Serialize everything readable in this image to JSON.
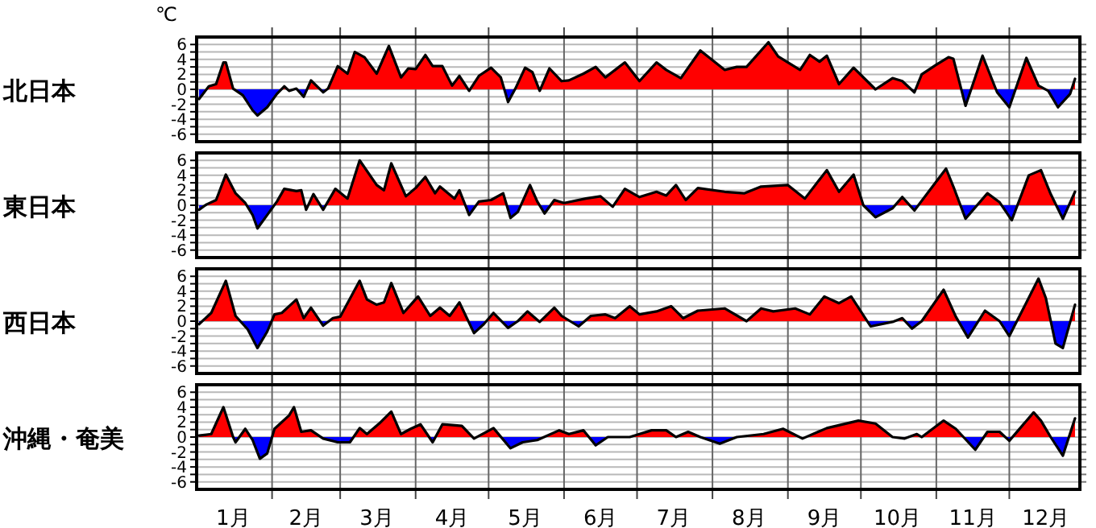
{
  "chart_data": [
    {
      "type": "area",
      "ylabel": "北日本",
      "annotations": [
        "℃"
      ],
      "xlim": [
        "--01-01",
        "--12-30"
      ],
      "ylim": [
        -7,
        7
      ],
      "tick_labels": "y",
      "grid": true,
      "colors": [
        "#ff0000",
        "#0000ff"
      ],
      "xticks": [
        {
          "value": "--02-01",
          "label": null
        },
        {
          "value": "--03-01",
          "label": null
        },
        {
          "value": "--04-01",
          "label": null
        },
        {
          "value": "--05-01",
          "label": null
        },
        {
          "value": "--06-01",
          "label": null
        },
        {
          "value": "--07-01",
          "label": null
        },
        {
          "value": "--08-01",
          "label": null
        },
        {
          "value": "--09-01",
          "label": null
        },
        {
          "value": "--10-01",
          "label": null
        },
        {
          "value": "--11-01",
          "label": null
        },
        {
          "value": "--12-01",
          "label": null
        }
      ],
      "yticks": [
        -6,
        {
          "value": -5,
          "label": null
        },
        -4,
        {
          "value": -3,
          "label": null
        },
        -2,
        {
          "value": -1,
          "label": null
        },
        0,
        {
          "value": 1,
          "label": null
        },
        2,
        {
          "value": 3,
          "label": null
        },
        4,
        {
          "value": 5,
          "label": null
        },
        6
      ],
      "series": [
        {
          "color": "#000000",
          "x": [
            "--01-02",
            "--01-06",
            "--01-09",
            "--01-12",
            "--01-13",
            "--01-16",
            "--01-20",
            "--01-24",
            "--01-26",
            "--01-30",
            "--02-03",
            "--02-06",
            "--02-08",
            "--02-11",
            "--02-14",
            "--02-17",
            "--02-22",
            "--02-24",
            "--02-28",
            "--03-04",
            "--03-07",
            "--03-11",
            "--03-16",
            "--03-21",
            "--03-26",
            "--03-29",
            "--04-01",
            "--04-05",
            "--04-08",
            "--04-12",
            "--04-16",
            "--04-19",
            "--04-23",
            "--04-27",
            "--05-02",
            "--05-06",
            "--05-09",
            "--05-12",
            "--05-16",
            "--05-19",
            "--05-22",
            "--05-26",
            "--05-31",
            "--06-03",
            "--06-09",
            "--06-14",
            "--06-18",
            "--06-26",
            "--07-02",
            "--07-09",
            "--07-13",
            "--07-19",
            "--07-27",
            "--08-06",
            "--08-11",
            "--08-15",
            "--08-24",
            "--08-28",
            "--09-06",
            "--09-10",
            "--09-14",
            "--09-17",
            "--09-22",
            "--09-28",
            "--10-07",
            "--10-14",
            "--10-18",
            "--10-23",
            "--10-26",
            "--11-01",
            "--11-06",
            "--11-08",
            "--11-13",
            "--11-20",
            "--11-26",
            "--12-01",
            "--12-08",
            "--12-13",
            "--12-17",
            "--12-21",
            "--12-26",
            "--12-28"
          ],
          "values": [
            -1.3,
            0.4,
            0.7,
            3.6,
            3.6,
            0.1,
            -0.8,
            -2.8,
            -3.5,
            -2.4,
            -0.6,
            0.4,
            -0.2,
            0.1,
            -1,
            1.2,
            -0.4,
            0.1,
            3.1,
            2.1,
            5,
            4.3,
            2.1,
            5.8,
            1.6,
            2.8,
            2.7,
            4.6,
            3.1,
            3.1,
            0.5,
            1.8,
            -0.2,
            1.8,
            2.9,
            1.6,
            -1.7,
            0.1,
            2.9,
            2.3,
            -0.2,
            2.8,
            1.1,
            1.2,
            2.1,
            3,
            1.6,
            3.6,
            1.1,
            3.6,
            2.6,
            1.5,
            5.2,
            2.6,
            3,
            3,
            6.3,
            4.4,
            2.6,
            4.6,
            3.7,
            4.5,
            0.7,
            2.9,
            0,
            1.5,
            1.1,
            -0.4,
            2,
            3.3,
            4.3,
            4.1,
            -2.2,
            4.5,
            -0.4,
            -2.4,
            4.2,
            0.5,
            -0.2,
            -2.4,
            -0.6,
            1.4
          ]
        }
      ]
    },
    {
      "type": "area",
      "ylabel": "東日本",
      "xlim": [
        "--01-01",
        "--12-30"
      ],
      "ylim": [
        -7,
        7
      ],
      "tick_labels": "y",
      "grid": true,
      "colors": [
        "#ff0000",
        "#0000ff"
      ],
      "xticks": [
        {
          "value": "--02-01",
          "label": null
        },
        {
          "value": "--03-01",
          "label": null
        },
        {
          "value": "--04-01",
          "label": null
        },
        {
          "value": "--05-01",
          "label": null
        },
        {
          "value": "--06-01",
          "label": null
        },
        {
          "value": "--07-01",
          "label": null
        },
        {
          "value": "--08-01",
          "label": null
        },
        {
          "value": "--09-01",
          "label": null
        },
        {
          "value": "--10-01",
          "label": null
        },
        {
          "value": "--11-01",
          "label": null
        },
        {
          "value": "--12-01",
          "label": null
        }
      ],
      "yticks": [
        -6,
        {
          "value": -5,
          "label": null
        },
        -4,
        {
          "value": -3,
          "label": null
        },
        -2,
        {
          "value": -1,
          "label": null
        },
        0,
        {
          "value": 1,
          "label": null
        },
        2,
        {
          "value": 3,
          "label": null
        },
        4,
        {
          "value": 5,
          "label": null
        },
        6
      ],
      "series": [
        {
          "color": "#000000",
          "x": [
            "--01-02",
            "--01-05",
            "--01-09",
            "--01-13",
            "--01-17",
            "--01-21",
            "--01-24",
            "--01-26",
            "--01-30",
            "--02-03",
            "--02-06",
            "--02-11",
            "--02-13",
            "--02-15",
            "--02-18",
            "--02-22",
            "--02-27",
            "--03-04",
            "--03-09",
            "--03-16",
            "--03-19",
            "--03-22",
            "--03-28",
            "--04-01",
            "--04-05",
            "--04-09",
            "--04-11",
            "--04-17",
            "--04-19",
            "--04-23",
            "--04-27",
            "--05-02",
            "--05-07",
            "--05-10",
            "--05-13",
            "--05-18",
            "--05-21",
            "--05-24",
            "--05-28",
            "--06-01",
            "--06-10",
            "--06-16",
            "--06-21",
            "--06-26",
            "--07-02",
            "--07-09",
            "--07-13",
            "--07-17",
            "--07-21",
            "--07-26",
            "--08-06",
            "--08-14",
            "--08-21",
            "--09-01",
            "--09-08",
            "--09-17",
            "--09-22",
            "--09-28",
            "--10-02",
            "--10-07",
            "--10-14",
            "--10-18",
            "--10-23",
            "--11-05",
            "--11-08",
            "--11-13",
            "--11-22",
            "--11-27",
            "--12-02",
            "--12-09",
            "--12-14",
            "--12-18",
            "--12-23",
            "--12-28"
          ],
          "values": [
            -0.6,
            0.1,
            0.7,
            4.1,
            1.6,
            0.3,
            -1.3,
            -3.1,
            -1.3,
            0.5,
            2.2,
            1.9,
            2,
            -0.6,
            1.5,
            -0.6,
            2.2,
            0.9,
            6,
            2.7,
            2,
            5.6,
            1.2,
            2.3,
            3.8,
            1.6,
            2.5,
            0.9,
            2,
            -1.3,
            0.5,
            0.7,
            1.6,
            -1.7,
            -0.9,
            2.7,
            0.5,
            -1.1,
            0.7,
            0.3,
            0.9,
            1.2,
            -0.2,
            2.2,
            1.1,
            1.8,
            1.3,
            2.7,
            0.7,
            2.3,
            1.8,
            1.6,
            2.5,
            2.7,
            0.9,
            4.7,
            1.8,
            4.1,
            0,
            -1.6,
            -0.4,
            1.1,
            -0.7,
            4.9,
            2.5,
            -1.8,
            1.6,
            0.4,
            -2,
            4,
            4.7,
            1.5,
            -1.8,
            1.8
          ]
        }
      ]
    },
    {
      "type": "area",
      "ylabel": "西日本",
      "xlim": [
        "--01-01",
        "--12-30"
      ],
      "ylim": [
        -7,
        7
      ],
      "tick_labels": "y",
      "grid": true,
      "colors": [
        "#ff0000",
        "#0000ff"
      ],
      "xticks": [
        {
          "value": "--02-01",
          "label": null
        },
        {
          "value": "--03-01",
          "label": null
        },
        {
          "value": "--04-01",
          "label": null
        },
        {
          "value": "--05-01",
          "label": null
        },
        {
          "value": "--06-01",
          "label": null
        },
        {
          "value": "--07-01",
          "label": null
        },
        {
          "value": "--08-01",
          "label": null
        },
        {
          "value": "--09-01",
          "label": null
        },
        {
          "value": "--10-01",
          "label": null
        },
        {
          "value": "--11-01",
          "label": null
        },
        {
          "value": "--12-01",
          "label": null
        }
      ],
      "yticks": [
        -6,
        {
          "value": -5,
          "label": null
        },
        -4,
        {
          "value": -3,
          "label": null
        },
        -2,
        {
          "value": -1,
          "label": null
        },
        0,
        {
          "value": 1,
          "label": null
        },
        2,
        {
          "value": 3,
          "label": null
        },
        4,
        {
          "value": 5,
          "label": null
        },
        6
      ],
      "series": [
        {
          "color": "#000000",
          "x": [
            "--01-02",
            "--01-07",
            "--01-13",
            "--01-17",
            "--01-22",
            "--01-26",
            "--01-30",
            "--02-02",
            "--02-05",
            "--02-11",
            "--02-14",
            "--02-17",
            "--02-22",
            "--02-26",
            "--03-01",
            "--03-09",
            "--03-12",
            "--03-16",
            "--03-19",
            "--03-22",
            "--03-27",
            "--04-02",
            "--04-07",
            "--04-11",
            "--04-15",
            "--04-19",
            "--04-25",
            "--04-29",
            "--05-03",
            "--05-09",
            "--05-13",
            "--05-17",
            "--05-22",
            "--05-28",
            "--05-31",
            "--06-07",
            "--06-12",
            "--06-18",
            "--06-22",
            "--06-28",
            "--07-02",
            "--07-09",
            "--07-15",
            "--07-20",
            "--07-26",
            "--08-06",
            "--08-15",
            "--08-21",
            "--08-26",
            "--09-04",
            "--09-10",
            "--09-16",
            "--09-22",
            "--09-27",
            "--10-05",
            "--10-14",
            "--10-18",
            "--10-22",
            "--10-26",
            "--11-04",
            "--11-09",
            "--11-14",
            "--11-21",
            "--11-27",
            "--12-01",
            "--12-13",
            "--12-16",
            "--12-20",
            "--12-23",
            "--12-28"
          ],
          "values": [
            -0.4,
            1.1,
            5.4,
            0.7,
            -1.1,
            -3.6,
            -1.4,
            0.9,
            1.1,
            2.9,
            0.4,
            1.8,
            -0.6,
            0.4,
            0.6,
            5.4,
            2.9,
            2.2,
            2.5,
            5.1,
            1.1,
            3.3,
            0.7,
            1.8,
            0.7,
            2.5,
            -1.6,
            -0.4,
            1.1,
            -0.9,
            0,
            1.3,
            -0.1,
            1.8,
            0.7,
            -0.7,
            0.7,
            0.9,
            0.4,
            2,
            0.9,
            1.3,
            2,
            0.4,
            1.4,
            1.7,
            0,
            1.7,
            1.3,
            1.7,
            0.9,
            3.3,
            2.4,
            3.3,
            -0.7,
            -0.1,
            0.4,
            -1,
            0,
            4.2,
            0.6,
            -2.2,
            1.4,
            0,
            -2,
            5.7,
            3.1,
            -3,
            -3.6,
            2.2
          ]
        }
      ]
    },
    {
      "type": "area",
      "ylabel": "沖縄・奄美",
      "xlim": [
        "--01-01",
        "--12-30"
      ],
      "ylim": [
        -7,
        7
      ],
      "grid": true,
      "colors": [
        "#ff0000",
        "#0000ff"
      ],
      "xticks": [
        {
          "value": "--01-16",
          "label": "1月"
        },
        {
          "value": "--02-01",
          "label": null
        },
        {
          "value": "--02-15",
          "label": "2月"
        },
        {
          "value": "--03-01",
          "label": null
        },
        {
          "value": "--03-16",
          "label": "3月"
        },
        {
          "value": "--04-01",
          "label": null
        },
        {
          "value": "--04-16",
          "label": "4月"
        },
        {
          "value": "--05-01",
          "label": null
        },
        {
          "value": "--05-16",
          "label": "5月"
        },
        {
          "value": "--06-01",
          "label": null
        },
        {
          "value": "--06-16",
          "label": "6月"
        },
        {
          "value": "--07-01",
          "label": null
        },
        {
          "value": "--07-16",
          "label": "7月"
        },
        {
          "value": "--08-01",
          "label": null
        },
        {
          "value": "--08-16",
          "label": "8月"
        },
        {
          "value": "--09-01",
          "label": null
        },
        {
          "value": "--09-16",
          "label": "9月"
        },
        {
          "value": "--10-01",
          "label": null
        },
        {
          "value": "--10-16",
          "label": "10月"
        },
        {
          "value": "--11-01",
          "label": null
        },
        {
          "value": "--11-16",
          "label": "11月"
        },
        {
          "value": "--12-01",
          "label": null
        },
        {
          "value": "--12-16",
          "label": "12月"
        }
      ],
      "yticks": [
        -6,
        {
          "value": -5,
          "label": null
        },
        -4,
        {
          "value": -3,
          "label": null
        },
        -2,
        {
          "value": -1,
          "label": null
        },
        0,
        {
          "value": 1,
          "label": null
        },
        2,
        {
          "value": 3,
          "label": null
        },
        4,
        {
          "value": 5,
          "label": null
        },
        6
      ],
      "series": [
        {
          "color": "#000000",
          "x": [
            "--01-02",
            "--01-07",
            "--01-12",
            "--01-16",
            "--01-17",
            "--01-21",
            "--01-24",
            "--01-27",
            "--01-30",
            "--02-02",
            "--02-08",
            "--02-10",
            "--02-13",
            "--02-17",
            "--02-22",
            "--02-28",
            "--03-05",
            "--03-09",
            "--03-12",
            "--03-17",
            "--03-22",
            "--03-26",
            "--03-30",
            "--04-03",
            "--04-08",
            "--04-12",
            "--04-20",
            "--04-25",
            "--05-03",
            "--05-10",
            "--05-15",
            "--05-21",
            "--05-30",
            "--06-03",
            "--06-09",
            "--06-14",
            "--06-19",
            "--06-28",
            "--07-02",
            "--07-07",
            "--07-13",
            "--07-17",
            "--07-22",
            "--07-27",
            "--08-04",
            "--08-11",
            "--08-22",
            "--08-30",
            "--09-07",
            "--09-17",
            "--09-30",
            "--10-07",
            "--10-14",
            "--10-19",
            "--10-24",
            "--10-26",
            "--11-04",
            "--11-09",
            "--11-17",
            "--11-22",
            "--11-27",
            "--12-01",
            "--12-11",
            "--12-14",
            "--12-18",
            "--12-23",
            "--12-28"
          ],
          "values": [
            0.2,
            0.4,
            4,
            0,
            -0.7,
            1.1,
            -0.4,
            -2.9,
            -2.2,
            1.1,
            2.9,
            4,
            0.7,
            0.9,
            -0.2,
            -0.7,
            -0.7,
            1.2,
            0.4,
            1.8,
            3.4,
            0.4,
            1.1,
            1.7,
            -0.7,
            1.7,
            1.5,
            -0.2,
            1.2,
            -1.5,
            -0.7,
            -0.4,
            0.9,
            0.4,
            0.9,
            -1.1,
            0,
            0,
            0.4,
            0.9,
            0.9,
            0,
            0.7,
            0,
            -0.9,
            0,
            0.4,
            1.1,
            -0.2,
            1.2,
            2.2,
            1.8,
            0,
            -0.2,
            0.4,
            0,
            2.2,
            1.1,
            -1.7,
            0.7,
            0.7,
            -0.5,
            3.3,
            2.2,
            0,
            -2.5,
            2.5
          ]
        }
      ]
    }
  ]
}
